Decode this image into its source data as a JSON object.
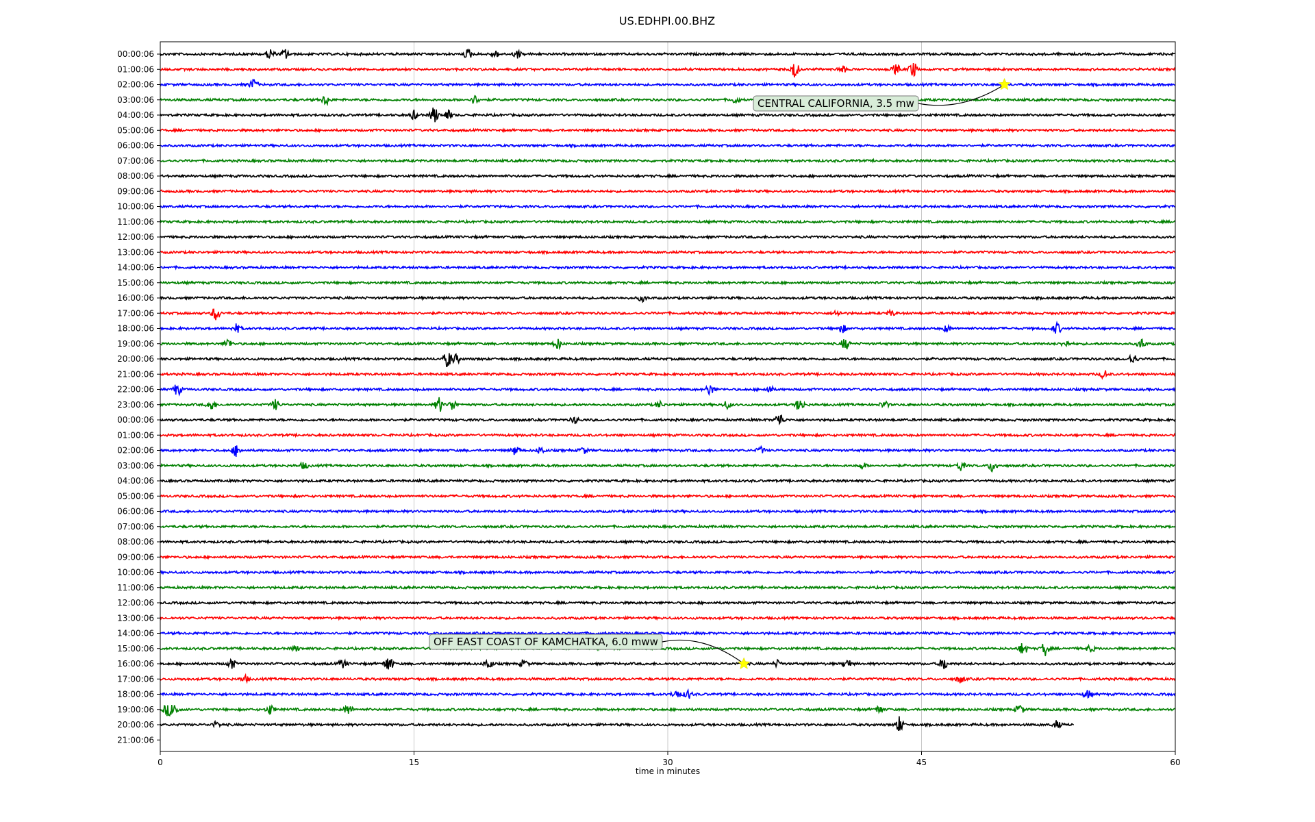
{
  "chart_data": {
    "type": "line",
    "title": "US.EDHPI.00.BHZ",
    "xlabel": "time in minutes",
    "ylabel": "",
    "xlim": [
      0,
      60
    ],
    "x_ticks": [
      "0",
      "15",
      "30",
      "45",
      "60"
    ],
    "x_tick_values": [
      0,
      15,
      30,
      45,
      60
    ],
    "grid": "vertical lines at x ticks",
    "colors": [
      "#000000",
      "#ff0000",
      "#0000ff",
      "#008000"
    ],
    "row_labels": [
      "00:00:06",
      "01:00:06",
      "02:00:06",
      "03:00:06",
      "04:00:06",
      "05:00:06",
      "06:00:06",
      "07:00:06",
      "08:00:06",
      "09:00:06",
      "10:00:06",
      "11:00:06",
      "12:00:06",
      "13:00:06",
      "14:00:06",
      "15:00:06",
      "16:00:06",
      "17:00:06",
      "18:00:06",
      "19:00:06",
      "20:00:06",
      "21:00:06",
      "22:00:06",
      "23:00:06",
      "00:00:06",
      "01:00:06",
      "02:00:06",
      "03:00:06",
      "04:00:06",
      "05:00:06",
      "06:00:06",
      "07:00:06",
      "08:00:06",
      "09:00:06",
      "10:00:06",
      "11:00:06",
      "12:00:06",
      "13:00:06",
      "14:00:06",
      "15:00:06",
      "16:00:06",
      "17:00:06",
      "18:00:06",
      "19:00:06",
      "20:00:06",
      "21:00:06"
    ],
    "trace_end_minutes": [
      60,
      60,
      60,
      60,
      60,
      60,
      60,
      60,
      60,
      60,
      60,
      60,
      60,
      60,
      60,
      60,
      60,
      60,
      60,
      60,
      60,
      60,
      60,
      60,
      60,
      60,
      60,
      60,
      60,
      60,
      60,
      60,
      60,
      60,
      60,
      60,
      60,
      60,
      60,
      60,
      60,
      60,
      60,
      60,
      54,
      null
    ],
    "bursts": [
      {
        "row": 0,
        "t": 6.5,
        "amp": 1.0
      },
      {
        "row": 0,
        "t": 7.4,
        "amp": 0.9
      },
      {
        "row": 0,
        "t": 18.2,
        "amp": 0.9
      },
      {
        "row": 0,
        "t": 19.8,
        "amp": 0.6
      },
      {
        "row": 0,
        "t": 21.1,
        "amp": 0.7
      },
      {
        "row": 1,
        "t": 37.5,
        "amp": 1.6
      },
      {
        "row": 1,
        "t": 40.3,
        "amp": 0.7
      },
      {
        "row": 1,
        "t": 43.5,
        "amp": 0.9
      },
      {
        "row": 1,
        "t": 44.5,
        "amp": 1.5
      },
      {
        "row": 2,
        "t": 5.5,
        "amp": 1.0
      },
      {
        "row": 3,
        "t": 9.8,
        "amp": 1.0
      },
      {
        "row": 3,
        "t": 18.6,
        "amp": 0.8
      },
      {
        "row": 3,
        "t": 34.0,
        "amp": 0.6
      },
      {
        "row": 4,
        "t": 15.0,
        "amp": 0.8
      },
      {
        "row": 4,
        "t": 16.2,
        "amp": 1.6
      },
      {
        "row": 4,
        "t": 17.0,
        "amp": 0.9
      },
      {
        "row": 16,
        "t": 28.5,
        "amp": 0.6
      },
      {
        "row": 17,
        "t": 3.3,
        "amp": 1.4
      },
      {
        "row": 17,
        "t": 40.0,
        "amp": 0.5
      },
      {
        "row": 17,
        "t": 43.2,
        "amp": 0.5
      },
      {
        "row": 18,
        "t": 4.5,
        "amp": 0.8
      },
      {
        "row": 18,
        "t": 40.3,
        "amp": 0.8
      },
      {
        "row": 18,
        "t": 46.5,
        "amp": 0.6
      },
      {
        "row": 18,
        "t": 53.0,
        "amp": 1.0
      },
      {
        "row": 19,
        "t": 4.0,
        "amp": 0.9
      },
      {
        "row": 19,
        "t": 23.5,
        "amp": 1.0
      },
      {
        "row": 19,
        "t": 40.5,
        "amp": 1.1
      },
      {
        "row": 19,
        "t": 53.5,
        "amp": 0.6
      },
      {
        "row": 19,
        "t": 58.0,
        "amp": 0.9
      },
      {
        "row": 20,
        "t": 17.0,
        "amp": 1.6
      },
      {
        "row": 20,
        "t": 17.5,
        "amp": 0.8
      },
      {
        "row": 20,
        "t": 57.5,
        "amp": 1.0
      },
      {
        "row": 21,
        "t": 55.8,
        "amp": 0.8
      },
      {
        "row": 22,
        "t": 1.0,
        "amp": 1.2
      },
      {
        "row": 22,
        "t": 32.5,
        "amp": 1.0
      },
      {
        "row": 22,
        "t": 36.0,
        "amp": 0.7
      },
      {
        "row": 23,
        "t": 3.0,
        "amp": 1.1
      },
      {
        "row": 23,
        "t": 6.8,
        "amp": 0.9
      },
      {
        "row": 23,
        "t": 16.5,
        "amp": 1.4
      },
      {
        "row": 23,
        "t": 17.3,
        "amp": 1.0
      },
      {
        "row": 23,
        "t": 29.5,
        "amp": 0.6
      },
      {
        "row": 23,
        "t": 33.5,
        "amp": 0.7
      },
      {
        "row": 23,
        "t": 37.8,
        "amp": 1.3
      },
      {
        "row": 23,
        "t": 42.8,
        "amp": 0.6
      },
      {
        "row": 24,
        "t": 24.5,
        "amp": 0.6
      },
      {
        "row": 24,
        "t": 36.6,
        "amp": 1.3
      },
      {
        "row": 26,
        "t": 4.5,
        "amp": 1.1
      },
      {
        "row": 26,
        "t": 21.0,
        "amp": 0.9
      },
      {
        "row": 26,
        "t": 22.5,
        "amp": 0.7
      },
      {
        "row": 26,
        "t": 25.0,
        "amp": 0.6
      },
      {
        "row": 26,
        "t": 35.5,
        "amp": 0.6
      },
      {
        "row": 27,
        "t": 8.5,
        "amp": 0.6
      },
      {
        "row": 27,
        "t": 41.5,
        "amp": 0.6
      },
      {
        "row": 27,
        "t": 47.3,
        "amp": 0.9
      },
      {
        "row": 27,
        "t": 49.2,
        "amp": 1.2
      },
      {
        "row": 39,
        "t": 8.0,
        "amp": 0.5
      },
      {
        "row": 39,
        "t": 51.0,
        "amp": 1.2
      },
      {
        "row": 39,
        "t": 52.3,
        "amp": 1.3
      },
      {
        "row": 39,
        "t": 55.0,
        "amp": 0.6
      },
      {
        "row": 40,
        "t": 4.2,
        "amp": 1.0
      },
      {
        "row": 40,
        "t": 10.8,
        "amp": 0.8
      },
      {
        "row": 40,
        "t": 13.5,
        "amp": 1.6
      },
      {
        "row": 40,
        "t": 19.4,
        "amp": 1.1
      },
      {
        "row": 40,
        "t": 21.5,
        "amp": 0.7
      },
      {
        "row": 40,
        "t": 36.5,
        "amp": 0.6
      },
      {
        "row": 40,
        "t": 40.6,
        "amp": 0.9
      },
      {
        "row": 40,
        "t": 46.3,
        "amp": 1.2
      },
      {
        "row": 41,
        "t": 5.0,
        "amp": 0.6
      },
      {
        "row": 41,
        "t": 47.3,
        "amp": 0.7
      },
      {
        "row": 42,
        "t": 30.5,
        "amp": 0.9
      },
      {
        "row": 42,
        "t": 31.2,
        "amp": 0.8
      },
      {
        "row": 42,
        "t": 54.8,
        "amp": 0.8
      },
      {
        "row": 43,
        "t": 0.4,
        "amp": 1.0
      },
      {
        "row": 43,
        "t": 0.8,
        "amp": 1.3
      },
      {
        "row": 43,
        "t": 6.5,
        "amp": 0.9
      },
      {
        "row": 43,
        "t": 11.1,
        "amp": 1.0
      },
      {
        "row": 43,
        "t": 42.5,
        "amp": 0.7
      },
      {
        "row": 43,
        "t": 50.8,
        "amp": 0.9
      },
      {
        "row": 44,
        "t": 3.3,
        "amp": 0.5
      },
      {
        "row": 44,
        "t": 43.7,
        "amp": 1.5
      },
      {
        "row": 44,
        "t": 53.0,
        "amp": 0.7
      }
    ],
    "events": [
      {
        "label": "CENTRAL CALIFORNIA, 3.5 mw",
        "row": 2,
        "t": 49.9
      },
      {
        "label": "OFF EAST COAST OF KAMCHATKA, 6.0 mww",
        "row": 40,
        "t": 34.5
      }
    ],
    "event_marker_color": "#ffff00",
    "annotation_box_color": "#d8ecd8"
  }
}
